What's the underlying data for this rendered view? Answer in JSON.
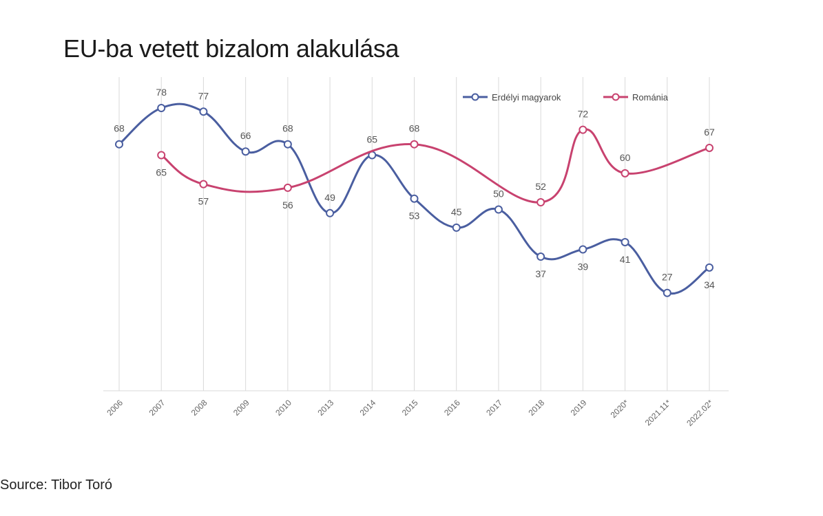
{
  "title": "EU-ba vetett bizalom alakulása",
  "source": "Source: Tibor Toró",
  "colors": {
    "series1": "#4a5ea0",
    "series2": "#c8426f",
    "grid": "#d9d9d9"
  },
  "chart_data": {
    "type": "line",
    "title": "EU-ba vetett bizalom alakulása",
    "categories": [
      "2006",
      "2007",
      "2008",
      "2009",
      "2010",
      "2013",
      "2014",
      "2015",
      "2016",
      "2017",
      "2018",
      "2019",
      "2020*",
      "2021.11*",
      "2022.02*"
    ],
    "series": [
      {
        "name": "Erdélyi magyarok",
        "values": [
          68,
          78,
          77,
          66,
          68,
          49,
          65,
          53,
          45,
          50,
          37,
          39,
          41,
          27,
          34
        ]
      },
      {
        "name": "Románia",
        "values": [
          null,
          65,
          57,
          null,
          56,
          null,
          null,
          68,
          null,
          null,
          52,
          72,
          60,
          null,
          67
        ]
      }
    ],
    "ylim": [
      0,
      90
    ],
    "grid": "vertical",
    "legend": "top-right"
  }
}
